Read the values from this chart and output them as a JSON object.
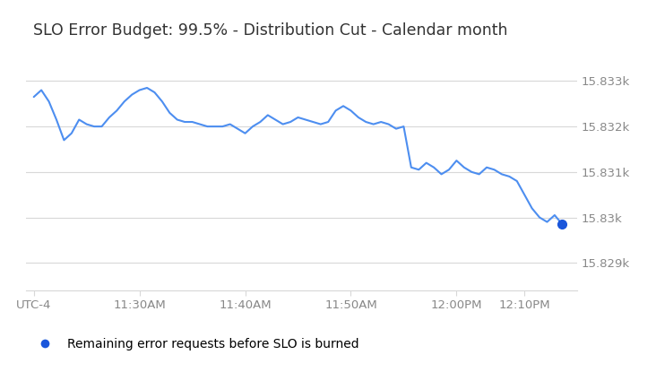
{
  "title": "SLO Error Budget: 99.5% - Distribution Cut - Calendar month",
  "line_color": "#4d8ef0",
  "background_color": "#ffffff",
  "grid_color": "#d8d8d8",
  "marker_color": "#1a56db",
  "legend_label": "Remaining error requests before SLO is burned",
  "ytick_labels": [
    "15.829k",
    "15.83k",
    "15.831k",
    "15.832k",
    "15.833k"
  ],
  "ytick_values": [
    15829,
    15830,
    15831,
    15832,
    15833
  ],
  "ylim_low": 15828.4,
  "ylim_high": 15833.8,
  "xtick_labels": [
    "UTC-4",
    "11:30AM",
    "11:40AM",
    "11:50AM",
    "12:00PM",
    "12:10PM"
  ],
  "x": [
    0,
    1,
    2,
    3,
    4,
    5,
    6,
    7,
    8,
    9,
    10,
    11,
    12,
    13,
    14,
    15,
    16,
    17,
    18,
    19,
    20,
    21,
    22,
    23,
    24,
    25,
    26,
    27,
    28,
    29,
    30,
    31,
    32,
    33,
    34,
    35,
    36,
    37,
    38,
    39,
    40,
    41,
    42,
    43,
    44,
    45,
    46,
    47,
    48,
    49,
    50,
    51,
    52,
    53,
    54,
    55,
    56,
    57,
    58,
    59,
    60,
    61,
    62,
    63,
    64,
    65,
    66,
    67,
    68,
    69,
    70
  ],
  "y": [
    15832.65,
    15832.8,
    15832.55,
    15832.15,
    15831.7,
    15831.85,
    15832.15,
    15832.05,
    15832.0,
    15832.0,
    15832.2,
    15832.35,
    15832.55,
    15832.7,
    15832.8,
    15832.85,
    15832.75,
    15832.55,
    15832.3,
    15832.15,
    15832.1,
    15832.1,
    15832.05,
    15832.0,
    15832.0,
    15832.0,
    15832.05,
    15831.95,
    15831.85,
    15832.0,
    15832.1,
    15832.25,
    15832.15,
    15832.05,
    15832.1,
    15832.2,
    15832.15,
    15832.1,
    15832.05,
    15832.1,
    15832.35,
    15832.45,
    15832.35,
    15832.2,
    15832.1,
    15832.05,
    15832.1,
    15832.05,
    15831.95,
    15832.0,
    15831.1,
    15831.05,
    15831.2,
    15831.1,
    15830.95,
    15831.05,
    15831.25,
    15831.1,
    15831.0,
    15830.95,
    15831.1,
    15831.05,
    15830.95,
    15830.9,
    15830.8,
    15830.5,
    15830.2,
    15830.0,
    15829.9,
    15830.05,
    15829.85
  ],
  "xtick_positions": [
    0,
    14,
    28,
    42,
    56,
    65
  ]
}
